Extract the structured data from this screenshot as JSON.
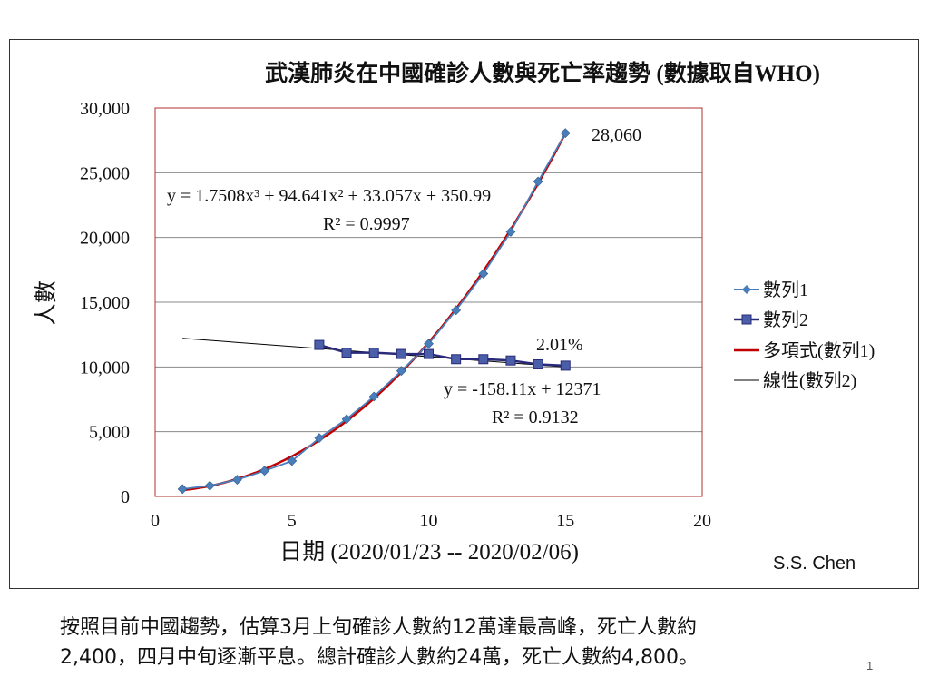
{
  "chart_data": {
    "type": "line",
    "title": "武漢肺炎在中國確診人數與死亡率趨勢 (數據取自WHO)",
    "xlabel": "日期 (2020/01/23 -- 2020/02/06)",
    "ylabel": "人數",
    "xlim": [
      0,
      20
    ],
    "ylim": [
      0,
      30000
    ],
    "x_ticks": [
      0,
      5,
      10,
      15,
      20
    ],
    "x_tick_labels": [
      "0",
      "5",
      "10",
      "15",
      "20"
    ],
    "y_ticks": [
      0,
      5000,
      10000,
      15000,
      20000,
      25000,
      30000
    ],
    "y_tick_labels": [
      "0",
      "5,000",
      "10,000",
      "15,000",
      "20,000",
      "25,000",
      "30,000"
    ],
    "grid": "horizontal",
    "legend_position": "right",
    "series": [
      {
        "name": "數列1",
        "color": "#4a7ebb",
        "marker": "diamond",
        "x": [
          1,
          2,
          3,
          4,
          5,
          6,
          7,
          8,
          9,
          10,
          11,
          12,
          13,
          14,
          15
        ],
        "y": [
          570,
          830,
          1290,
          1980,
          2740,
          4510,
          5970,
          7710,
          9690,
          11790,
          14380,
          17200,
          20440,
          24320,
          28060
        ]
      },
      {
        "name": "數列2",
        "color": "#2a2a7a",
        "marker": "square",
        "x": [
          6,
          7,
          8,
          9,
          10,
          11,
          12,
          13,
          14,
          15
        ],
        "y": [
          11700,
          11100,
          11100,
          11000,
          11000,
          10600,
          10600,
          10500,
          10200,
          10100
        ]
      }
    ],
    "trendlines": [
      {
        "name": "多項式(數列1)",
        "color": "#c00000",
        "kind": "polynomial",
        "coefficients": [
          1.7508,
          94.641,
          33.057,
          350.99
        ],
        "x_range": [
          1,
          15
        ]
      },
      {
        "name": "線性(數列2)",
        "color": "#000000",
        "kind": "linear",
        "slope": -158.11,
        "intercept": 12371,
        "x_range": [
          1,
          15
        ]
      }
    ],
    "annotations": {
      "poly_eq": "y = 1.7508x³ + 94.641x² + 33.057x + 350.99",
      "poly_r2": "R² = 0.9997",
      "linear_eq": "y = -158.11x + 12371",
      "linear_r2": "R² = 0.9132",
      "last_value": "28,060",
      "rate": "2.01%"
    },
    "legend": [
      "數列1",
      "數列2",
      "多項式(數列1)",
      "線性(數列2)"
    ]
  },
  "author": "S.S. Chen",
  "note_line1": "按照目前中國趨勢，估算3月上旬確診人數約12萬達最高峰，死亡人數約",
  "note_line2": "2,400，四月中旬逐漸平息。總計確診人數約24萬，死亡人數約4,800。",
  "page_number": "1"
}
